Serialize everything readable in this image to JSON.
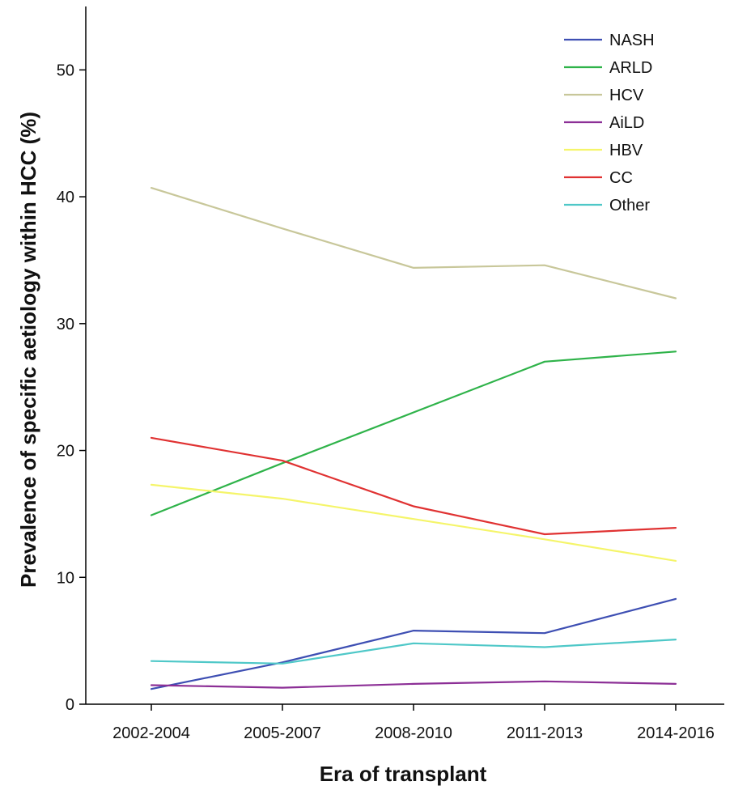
{
  "chart_data": {
    "type": "line",
    "title": "",
    "xlabel": "Era of transplant",
    "ylabel": "Prevalence of specific aetiology within HCC (%)",
    "categories": [
      "2002-2004",
      "2005-2007",
      "2008-2010",
      "2011-2013",
      "2014-2016"
    ],
    "ylim": [
      0,
      55
    ],
    "yticks": [
      0,
      10,
      20,
      30,
      40,
      50
    ],
    "grid": false,
    "legend_position": "top-right",
    "series": [
      {
        "name": "NASH",
        "color": "#3e4fb3",
        "values": [
          1.2,
          3.3,
          5.8,
          5.6,
          8.3
        ]
      },
      {
        "name": "ARLD",
        "color": "#2fb34a",
        "values": [
          14.9,
          19.0,
          23.0,
          27.0,
          27.8
        ]
      },
      {
        "name": "HCV",
        "color": "#c8c79a",
        "values": [
          40.7,
          37.5,
          34.4,
          34.6,
          32.0
        ]
      },
      {
        "name": "AiLD",
        "color": "#8c2f96",
        "values": [
          1.5,
          1.3,
          1.6,
          1.8,
          1.6
        ]
      },
      {
        "name": "HBV",
        "color": "#f5f56a",
        "values": [
          17.3,
          16.2,
          14.6,
          13.0,
          11.3
        ]
      },
      {
        "name": "CC",
        "color": "#e03232",
        "values": [
          21.0,
          19.2,
          15.6,
          13.4,
          13.9
        ]
      },
      {
        "name": "Other",
        "color": "#4fc8c8",
        "values": [
          3.4,
          3.2,
          4.8,
          4.5,
          5.1
        ]
      }
    ]
  }
}
